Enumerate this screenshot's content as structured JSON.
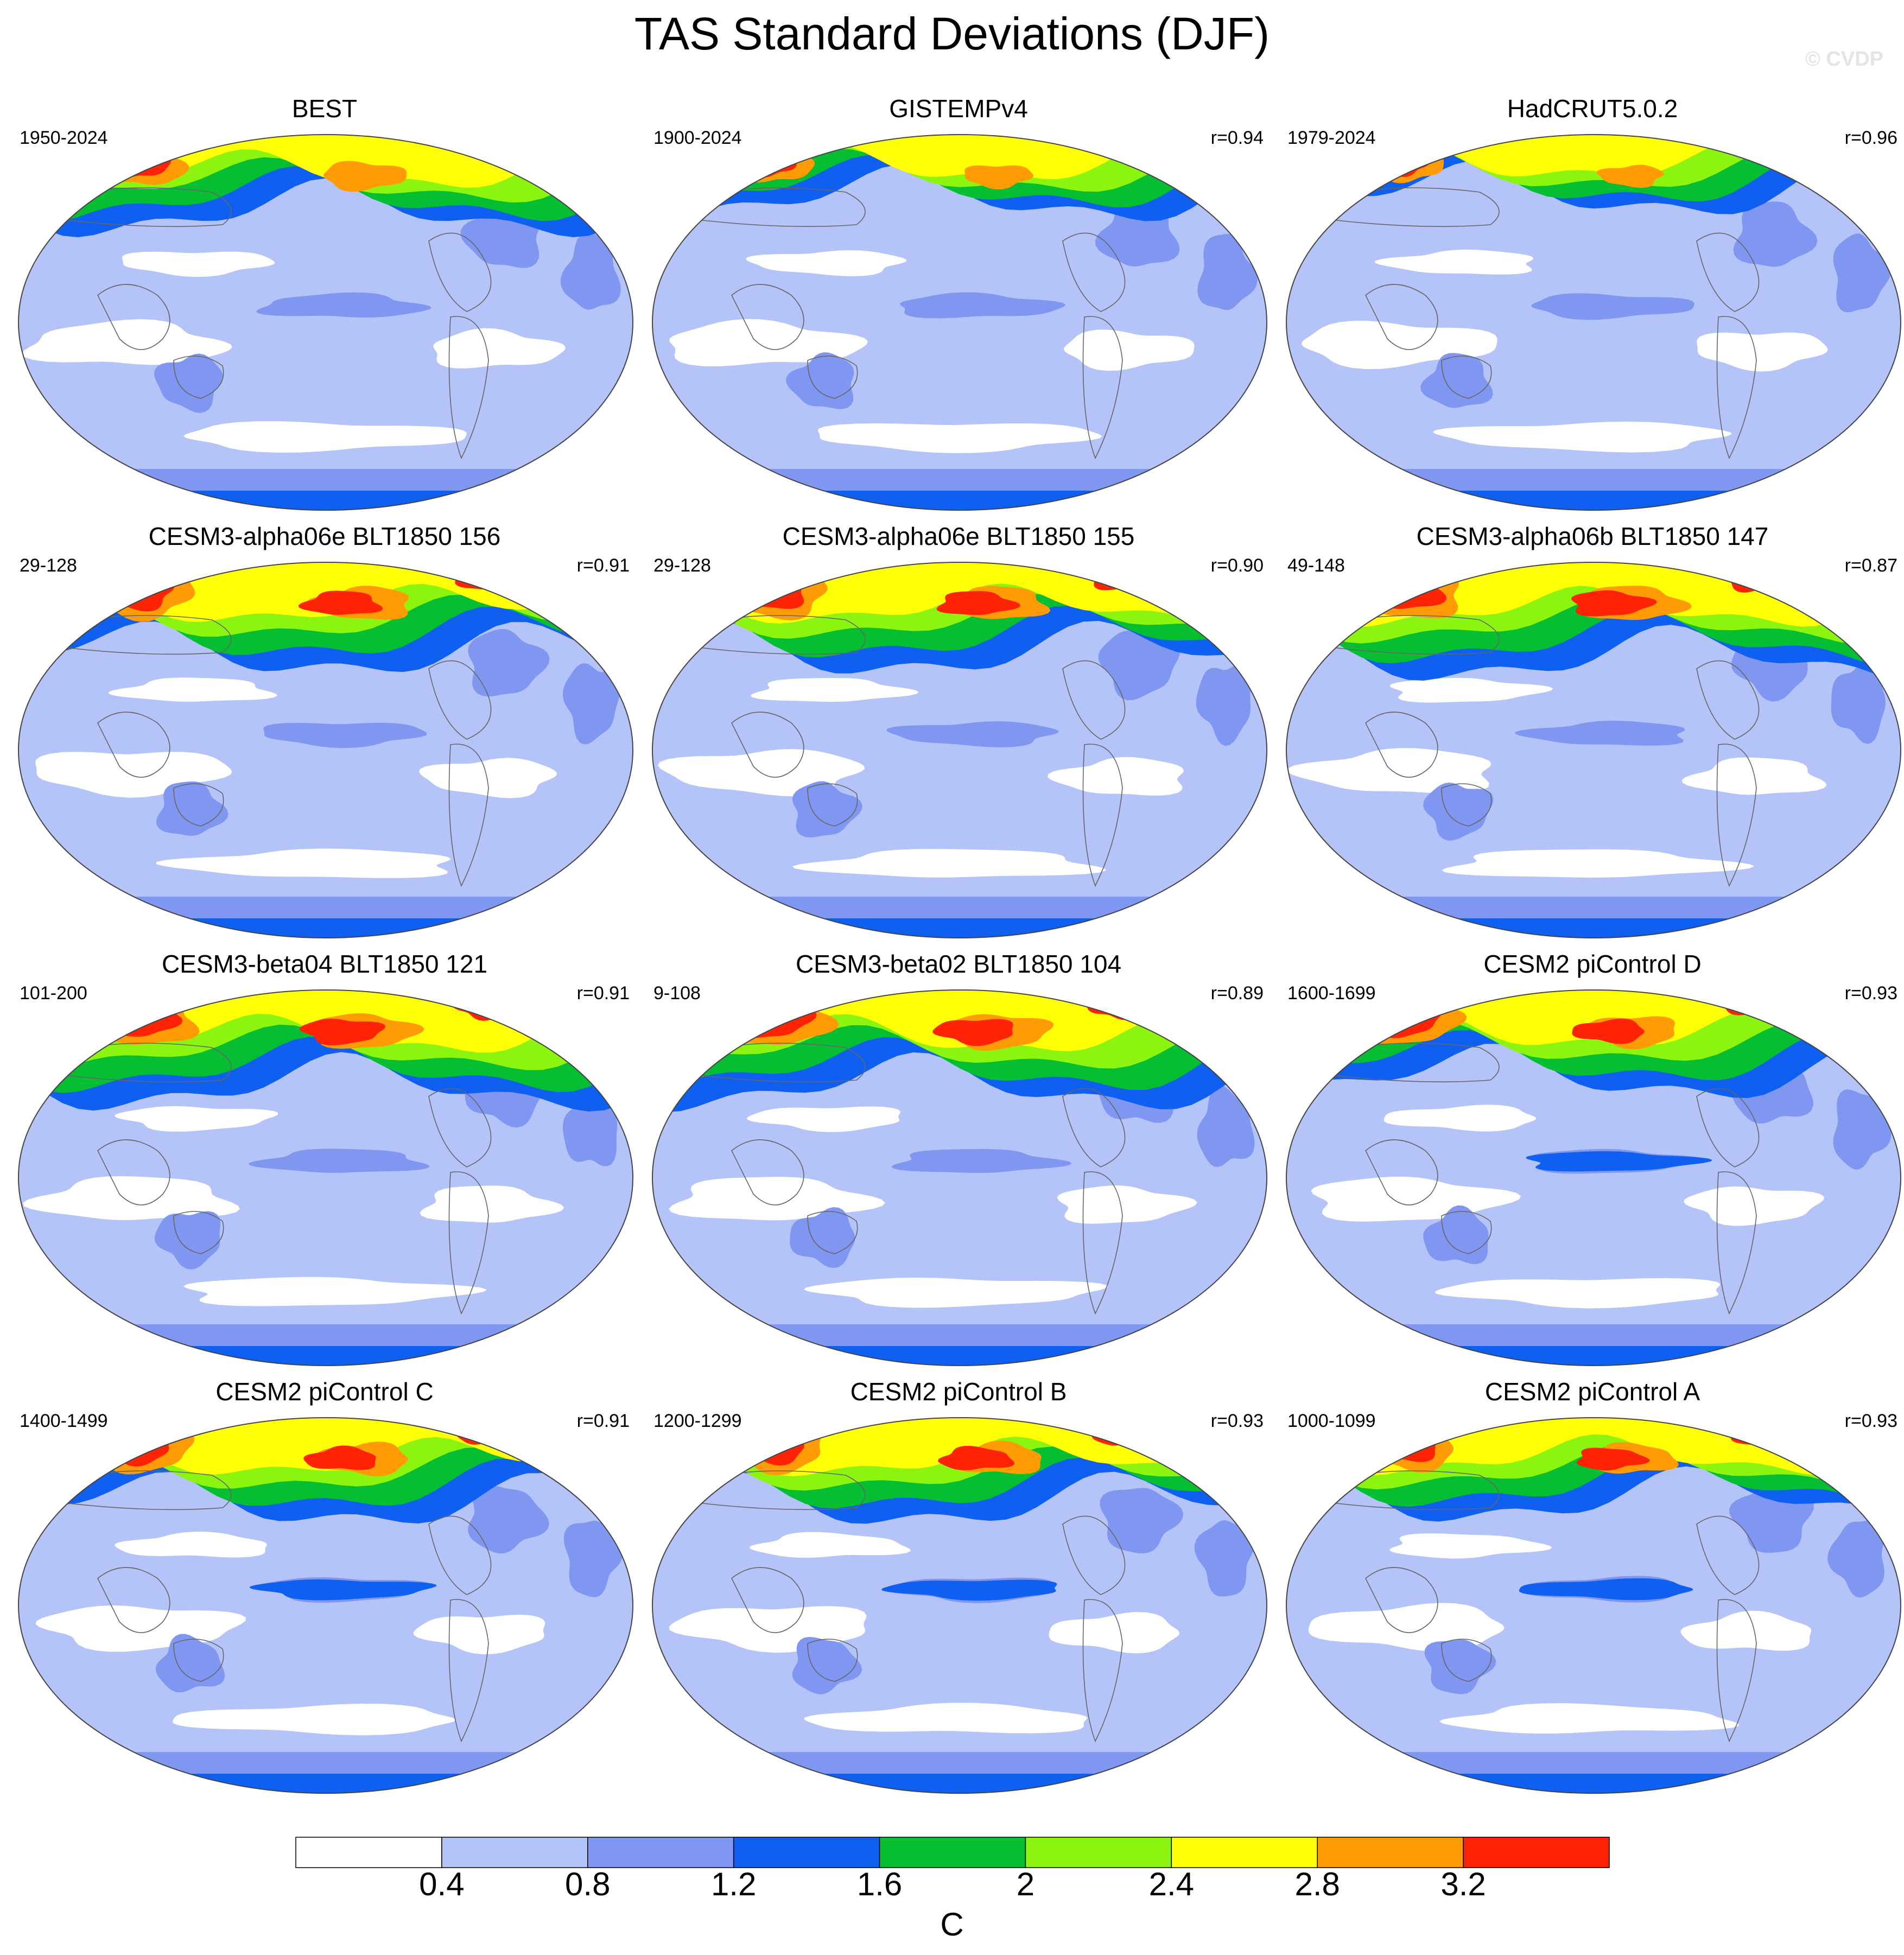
{
  "title": "TAS Standard Deviations (DJF)",
  "watermark": "© CVDP",
  "panels": [
    {
      "title": "BEST",
      "period": "1950-2024",
      "r": "",
      "intensity": 0.85,
      "variant": 0
    },
    {
      "title": "GISTEMPv4",
      "period": "1900-2024",
      "r": "r=0.94",
      "intensity": 0.7,
      "variant": 1
    },
    {
      "title": "HadCRUT5.0.2",
      "period": "1979-2024",
      "r": "r=0.96",
      "intensity": 0.65,
      "variant": 2
    },
    {
      "title": "CESM3-alpha06e BLT1850 156",
      "period": "29-128",
      "r": "r=0.91",
      "intensity": 1.0,
      "variant": 3
    },
    {
      "title": "CESM3-alpha06e BLT1850 155",
      "period": "29-128",
      "r": "r=0.90",
      "intensity": 1.0,
      "variant": 4
    },
    {
      "title": "CESM3-alpha06b BLT1850 147",
      "period": "49-148",
      "r": "r=0.87",
      "intensity": 1.05,
      "variant": 5
    },
    {
      "title": "CESM3-beta04 BLT1850 121",
      "period": "101-200",
      "r": "r=0.91",
      "intensity": 1.05,
      "variant": 6
    },
    {
      "title": "CESM3-beta02 BLT1850 104",
      "period": "9-108",
      "r": "r=0.89",
      "intensity": 1.05,
      "variant": 7
    },
    {
      "title": "CESM2 piControl D",
      "period": "1600-1699",
      "r": "r=0.93",
      "intensity": 0.95,
      "variant": 8
    },
    {
      "title": "CESM2 piControl C",
      "period": "1400-1499",
      "r": "r=0.91",
      "intensity": 0.95,
      "variant": 9
    },
    {
      "title": "CESM2 piControl B",
      "period": "1200-1299",
      "r": "r=0.93",
      "intensity": 0.95,
      "variant": 10
    },
    {
      "title": "CESM2 piControl A",
      "period": "1000-1099",
      "r": "r=0.93",
      "intensity": 0.9,
      "variant": 11
    }
  ],
  "colorbar": {
    "levels": [
      0.4,
      0.8,
      1.2,
      1.6,
      2,
      2.4,
      2.8,
      3.2
    ],
    "labels": [
      "0.4",
      "0.8",
      "1.2",
      "1.6",
      "2",
      "2.4",
      "2.8",
      "3.2"
    ],
    "colors": [
      "#ffffff",
      "#b4c3f8",
      "#8097f2",
      "#0f5ff0",
      "#05be32",
      "#8cf50f",
      "#ffff05",
      "#ff9b05",
      "#ff2305"
    ],
    "unit": "C"
  }
}
